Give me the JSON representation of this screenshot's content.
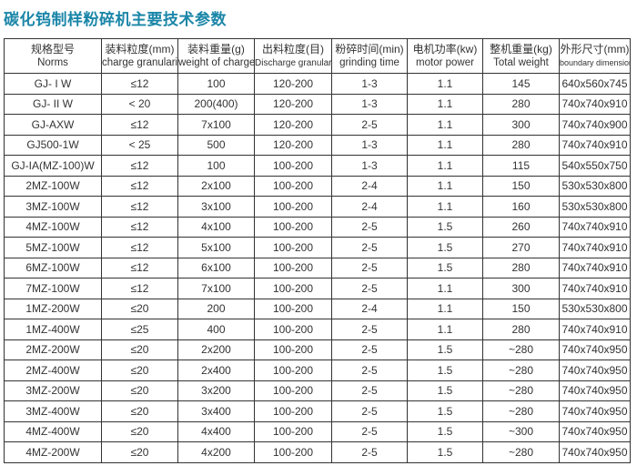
{
  "title": "碳化钨制样粉碎机主要技术参数",
  "columns": [
    {
      "cn": "规格型号",
      "en": "Norms"
    },
    {
      "cn": "装料粒度(mm)",
      "en": "charge granularity"
    },
    {
      "cn": "装料重量(g)",
      "en": "weight of charge"
    },
    {
      "cn": "出料粒度(目)",
      "en": "Discharge granularity"
    },
    {
      "cn": "粉碎时间(min)",
      "en": "grinding time"
    },
    {
      "cn": "电机功率(kw)",
      "en": "motor power"
    },
    {
      "cn": "整机重量(kg)",
      "en": "Total weight"
    },
    {
      "cn": "外形尺寸(mm)",
      "en": "boundary dimension"
    }
  ],
  "rows": [
    [
      "GJ- I W",
      "≤12",
      "100",
      "120-200",
      "1-3",
      "1.1",
      "145",
      "640x560x745"
    ],
    [
      "GJ- II W",
      "< 20",
      "200(400)",
      "120-200",
      "1-3",
      "1.1",
      "280",
      "740x740x910"
    ],
    [
      "GJ-AXW",
      "≤12",
      "7x100",
      "120-200",
      "2-5",
      "1.1",
      "300",
      "740x740x900"
    ],
    [
      "GJ500-1W",
      "< 25",
      "500",
      "120-200",
      "1-3",
      "1.1",
      "280",
      "740x740x910"
    ],
    [
      "GJ-IA(MZ-100)W",
      "≤12",
      "100",
      "100-200",
      "1-3",
      "1.1",
      "115",
      "540x550x750"
    ],
    [
      "2MZ-100W",
      "≤12",
      "2x100",
      "100-200",
      "2-4",
      "1.1",
      "150",
      "530x530x800"
    ],
    [
      "3MZ-100W",
      "≤12",
      "3x100",
      "100-200",
      "2-4",
      "1.1",
      "160",
      "530x530x800"
    ],
    [
      "4MZ-100W",
      "≤12",
      "4x100",
      "100-200",
      "2-5",
      "1.5",
      "260",
      "740x740x910"
    ],
    [
      "5MZ-100W",
      "≤12",
      "5x100",
      "100-200",
      "2-5",
      "1.5",
      "270",
      "740x740x910"
    ],
    [
      "6MZ-100W",
      "≤12",
      "6x100",
      "100-200",
      "2-5",
      "1.5",
      "280",
      "740x740x910"
    ],
    [
      "7MZ-100W",
      "≤12",
      "7x100",
      "100-200",
      "2-5",
      "1.1",
      "300",
      "740x740x910"
    ],
    [
      "1MZ-200W",
      "≤20",
      "200",
      "100-200",
      "2-4",
      "1.1",
      "150",
      "530x530x800"
    ],
    [
      "1MZ-400W",
      "≤25",
      "400",
      "100-200",
      "2-5",
      "1.1",
      "280",
      "740x740x910"
    ],
    [
      "2MZ-200W",
      "≤20",
      "2x200",
      "100-200",
      "2-5",
      "1.5",
      "~280",
      "740x740x950"
    ],
    [
      "2MZ-400W",
      "≤20",
      "2x400",
      "100-200",
      "2-5",
      "1.5",
      "~280",
      "740x740x950"
    ],
    [
      "3MZ-200W",
      "≤20",
      "3x200",
      "100-200",
      "2-5",
      "1.5",
      "~280",
      "740x740x950"
    ],
    [
      "3MZ-400W",
      "≤20",
      "3x400",
      "100-200",
      "2-5",
      "1.5",
      "~280",
      "740x740x950"
    ],
    [
      "4MZ-400W",
      "≤20",
      "4x400",
      "100-200",
      "2-5",
      "1.5",
      "~300",
      "740x740x950"
    ],
    [
      "4MZ-200W",
      "≤20",
      "4x200",
      "100-200",
      "2-5",
      "1.5",
      "~280",
      "740x740x950"
    ]
  ]
}
